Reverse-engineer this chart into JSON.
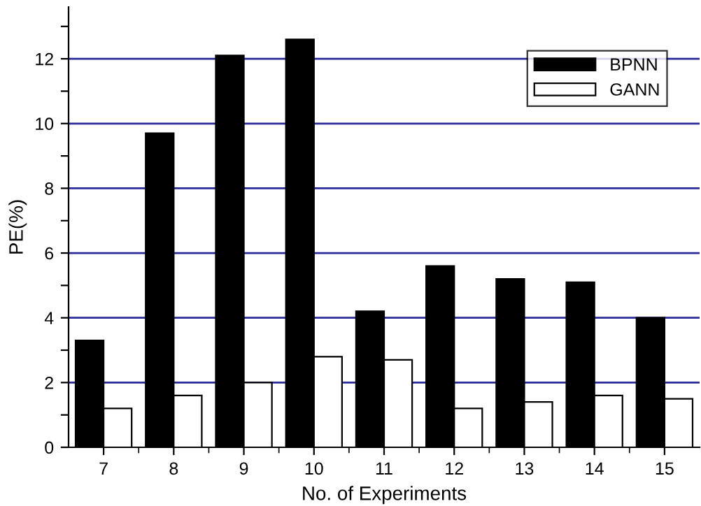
{
  "chart_data": {
    "type": "bar",
    "xlabel": "No. of Experiments",
    "ylabel": "PE(%)",
    "categories": [
      "7",
      "8",
      "9",
      "10",
      "11",
      "12",
      "13",
      "14",
      "15"
    ],
    "series": [
      {
        "name": "BPNN",
        "color": "#000000",
        "values": [
          3.3,
          9.7,
          12.1,
          12.6,
          4.2,
          5.6,
          5.2,
          5.1,
          4.0
        ]
      },
      {
        "name": "GANN",
        "color": "#ffffff",
        "values": [
          1.2,
          1.6,
          2.0,
          2.8,
          2.7,
          1.2,
          1.4,
          1.6,
          1.5
        ]
      }
    ],
    "ylim": [
      0,
      13.6
    ],
    "yticks": [
      0,
      {
        "value": 1,
        "label": null
      },
      2,
      {
        "value": 3,
        "label": null
      },
      4,
      {
        "value": 5,
        "label": null
      },
      6,
      {
        "value": 7,
        "label": null
      },
      8,
      {
        "value": 9,
        "label": null
      },
      10,
      {
        "value": 11,
        "label": null
      },
      12,
      {
        "value": 13,
        "label": null
      }
    ],
    "grid": "y",
    "legend": "top right"
  }
}
